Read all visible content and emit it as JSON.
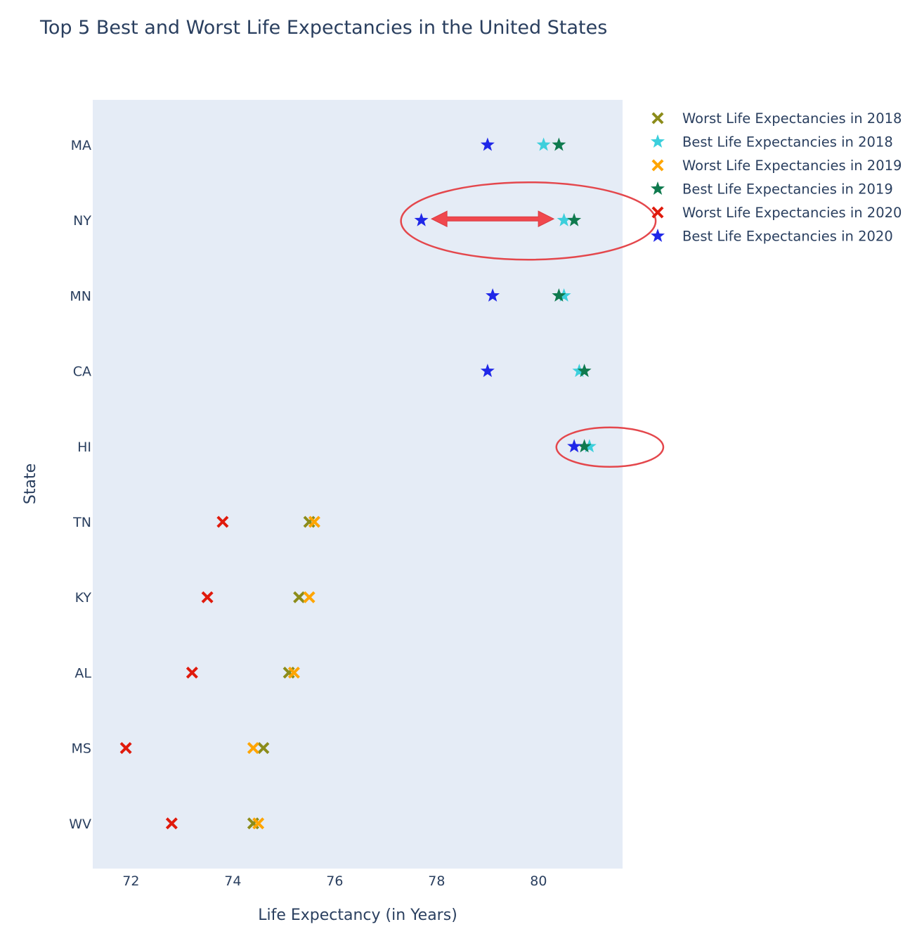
{
  "chart_data": {
    "type": "scatter",
    "title": "Top 5 Best and Worst Life Expectancies in the United States",
    "xlabel": "Life Expectancy (in Years)",
    "ylabel": "State",
    "xlim": [
      71.25,
      81.65
    ],
    "xticks": [
      72,
      74,
      76,
      78,
      80
    ],
    "categories": [
      "MA",
      "NY",
      "MN",
      "CA",
      "HI",
      "TN",
      "KY",
      "AL",
      "MS",
      "WV"
    ],
    "grid": false,
    "legend_position": "right",
    "series": [
      {
        "name": "Worst Life Expectancies in 2018",
        "marker": "x",
        "color": "#8c8c1a",
        "points": [
          {
            "y": "TN",
            "x": 75.5
          },
          {
            "y": "KY",
            "x": 75.3
          },
          {
            "y": "AL",
            "x": 75.1
          },
          {
            "y": "MS",
            "x": 74.6
          },
          {
            "y": "WV",
            "x": 74.4
          }
        ]
      },
      {
        "name": "Best Life Expectancies in 2018",
        "marker": "star",
        "color": "#3ccfdc",
        "points": [
          {
            "y": "MA",
            "x": 80.1
          },
          {
            "y": "NY",
            "x": 80.5
          },
          {
            "y": "MN",
            "x": 80.5
          },
          {
            "y": "CA",
            "x": 80.8
          },
          {
            "y": "HI",
            "x": 81.0
          }
        ]
      },
      {
        "name": "Worst Life Expectancies in 2019",
        "marker": "x",
        "color": "#ffa500",
        "points": [
          {
            "y": "TN",
            "x": 75.6
          },
          {
            "y": "KY",
            "x": 75.5
          },
          {
            "y": "AL",
            "x": 75.2
          },
          {
            "y": "MS",
            "x": 74.4
          },
          {
            "y": "WV",
            "x": 74.5
          }
        ]
      },
      {
        "name": "Best Life Expectancies in 2019",
        "marker": "star",
        "color": "#0f7a4e",
        "points": [
          {
            "y": "MA",
            "x": 80.4
          },
          {
            "y": "NY",
            "x": 80.7
          },
          {
            "y": "MN",
            "x": 80.4
          },
          {
            "y": "CA",
            "x": 80.9
          },
          {
            "y": "HI",
            "x": 80.9
          }
        ]
      },
      {
        "name": "Worst Life Expectancies in 2020",
        "marker": "x",
        "color": "#e01a0c",
        "points": [
          {
            "y": "TN",
            "x": 73.8
          },
          {
            "y": "KY",
            "x": 73.5
          },
          {
            "y": "AL",
            "x": 73.2
          },
          {
            "y": "MS",
            "x": 71.9
          },
          {
            "y": "WV",
            "x": 72.8
          }
        ]
      },
      {
        "name": "Best Life Expectancies in 2020",
        "marker": "star",
        "color": "#1f27e8",
        "points": [
          {
            "y": "MA",
            "x": 79.0
          },
          {
            "y": "NY",
            "x": 77.7
          },
          {
            "y": "MN",
            "x": 79.1
          },
          {
            "y": "CA",
            "x": 79.0
          },
          {
            "y": "HI",
            "x": 80.7
          }
        ]
      }
    ],
    "annotations": [
      {
        "type": "ellipse",
        "around": "NY",
        "x_range": [
          77.3,
          82.3
        ],
        "color": "#e4474c"
      },
      {
        "type": "double-arrow",
        "row": "NY",
        "x_range": [
          77.9,
          80.3
        ],
        "color": "#f0484e"
      },
      {
        "type": "ellipse",
        "around": "HI",
        "x_range": [
          80.35,
          82.45
        ],
        "color": "#e4474c"
      }
    ]
  }
}
